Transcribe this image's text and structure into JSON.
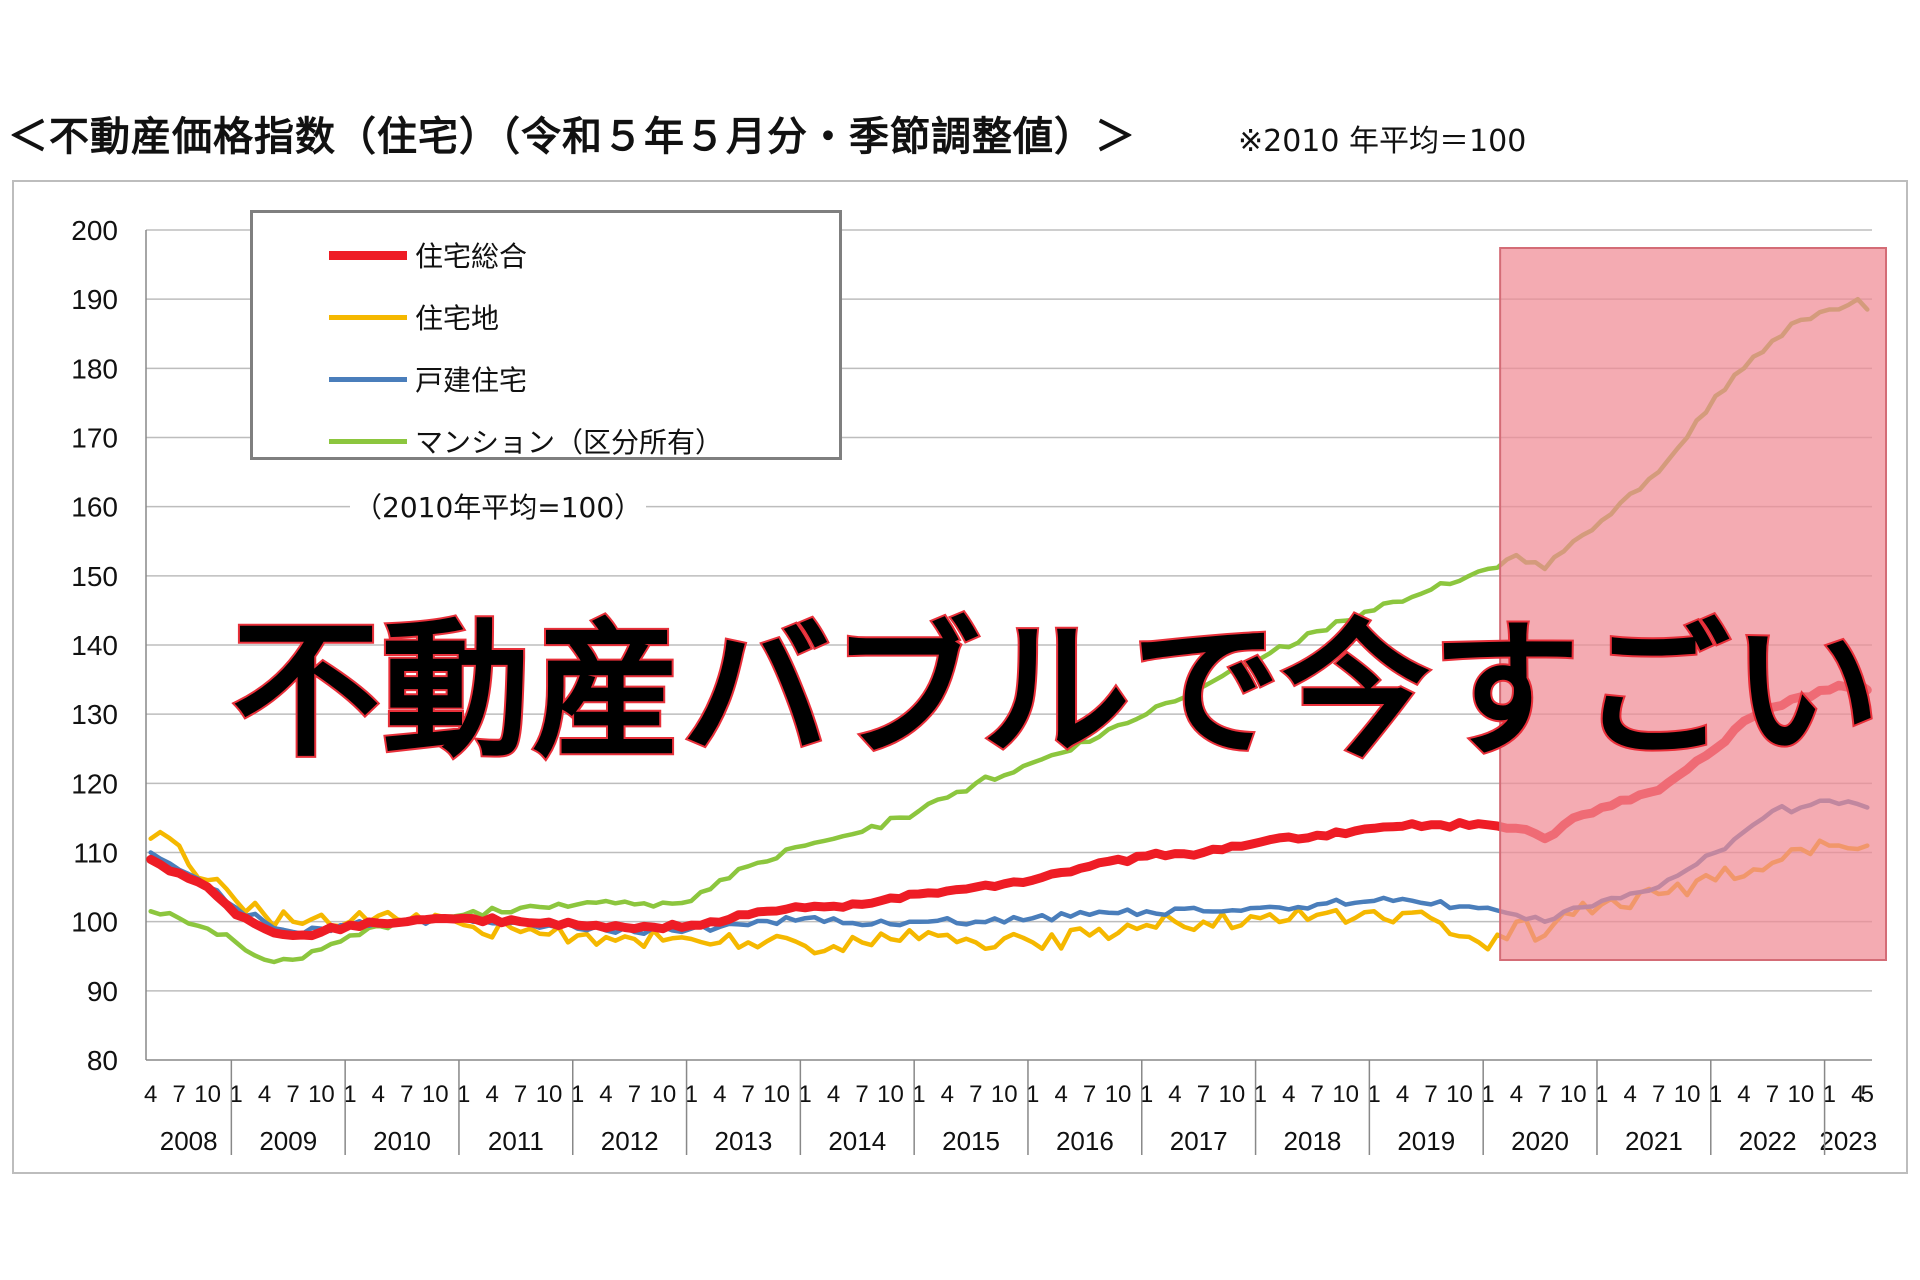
{
  "page": {
    "title": "＜不動産価格指数（住宅）（令和５年５月分・季節調整値）＞",
    "base_note": "※2010 年平均＝100",
    "overlay_caption": "不動産バブルで今すごい",
    "highlight_color": "#f08a94"
  },
  "chart_data": {
    "type": "line",
    "title": "",
    "inline_note": "（2010年平均=100）",
    "ylim": [
      80,
      200
    ],
    "y_ticks": [
      80,
      90,
      100,
      110,
      120,
      130,
      140,
      150,
      160,
      170,
      180,
      190,
      200
    ],
    "x_start": "2008-04",
    "x_end": "2023-05",
    "highlight_range": [
      "2020-03",
      "2023-05"
    ],
    "grid": true,
    "legend_position": "top-left",
    "years": [
      "2008",
      "2009",
      "2010",
      "2011",
      "2012",
      "2013",
      "2014",
      "2015",
      "2016",
      "2017",
      "2018",
      "2019",
      "2020",
      "2021",
      "2022",
      "2023"
    ],
    "month_ticks": [
      "1",
      "4",
      "7",
      "10"
    ],
    "last_year_ticks": [
      "1",
      "4",
      "5"
    ],
    "series": [
      {
        "name": "住宅総合",
        "color": "#ee1c25",
        "points": [
          [
            "2008-04",
            109
          ],
          [
            "2008-07",
            107
          ],
          [
            "2008-10",
            105
          ],
          [
            "2009-01",
            101
          ],
          [
            "2009-04",
            99
          ],
          [
            "2009-07",
            98
          ],
          [
            "2009-10",
            98.5
          ],
          [
            "2010-01",
            99.5
          ],
          [
            "2010-07",
            100
          ],
          [
            "2011-01",
            100.5
          ],
          [
            "2011-07",
            100
          ],
          [
            "2012-01",
            99.5
          ],
          [
            "2012-07",
            99
          ],
          [
            "2013-01",
            99.5
          ],
          [
            "2013-07",
            101
          ],
          [
            "2014-01",
            102
          ],
          [
            "2014-07",
            102.5
          ],
          [
            "2015-01",
            104
          ],
          [
            "2015-07",
            105
          ],
          [
            "2016-01",
            106
          ],
          [
            "2016-07",
            108
          ],
          [
            "2017-01",
            109.5
          ],
          [
            "2017-07",
            110
          ],
          [
            "2018-01",
            111.5
          ],
          [
            "2018-07",
            112.5
          ],
          [
            "2019-01",
            113.5
          ],
          [
            "2019-07",
            114
          ],
          [
            "2020-01",
            114
          ],
          [
            "2020-04",
            113.5
          ],
          [
            "2020-07",
            112
          ],
          [
            "2020-10",
            115
          ],
          [
            "2021-01",
            116.5
          ],
          [
            "2021-07",
            119
          ],
          [
            "2021-10",
            122
          ],
          [
            "2022-01",
            125
          ],
          [
            "2022-04",
            129
          ],
          [
            "2022-07",
            131
          ],
          [
            "2022-10",
            132.5
          ],
          [
            "2023-01",
            133.5
          ],
          [
            "2023-04",
            134.5
          ],
          [
            "2023-05",
            133.5
          ]
        ]
      },
      {
        "name": "住宅地",
        "color": "#f5b800",
        "points": [
          [
            "2008-04",
            112
          ],
          [
            "2008-07",
            111
          ],
          [
            "2008-10",
            106
          ],
          [
            "2009-01",
            103
          ],
          [
            "2009-04",
            101
          ],
          [
            "2009-07",
            100
          ],
          [
            "2009-10",
            101
          ],
          [
            "2010-01",
            100
          ],
          [
            "2010-07",
            100
          ],
          [
            "2011-01",
            99.5
          ],
          [
            "2011-07",
            98.5
          ],
          [
            "2012-01",
            98
          ],
          [
            "2012-07",
            97.5
          ],
          [
            "2013-01",
            97.5
          ],
          [
            "2013-07",
            97
          ],
          [
            "2014-01",
            96.5
          ],
          [
            "2014-07",
            97
          ],
          [
            "2015-01",
            97.5
          ],
          [
            "2015-07",
            97
          ],
          [
            "2016-01",
            97
          ],
          [
            "2016-07",
            98
          ],
          [
            "2017-01",
            99.5
          ],
          [
            "2017-07",
            100
          ],
          [
            "2018-01",
            100.5
          ],
          [
            "2018-07",
            101
          ],
          [
            "2019-01",
            101.5
          ],
          [
            "2019-07",
            100.5
          ],
          [
            "2020-01",
            96
          ],
          [
            "2020-04",
            100
          ],
          [
            "2020-07",
            98
          ],
          [
            "2020-10",
            101
          ],
          [
            "2021-01",
            102.5
          ],
          [
            "2021-07",
            104
          ],
          [
            "2022-01",
            106
          ],
          [
            "2022-07",
            108.5
          ],
          [
            "2022-10",
            110.5
          ],
          [
            "2023-01",
            111
          ],
          [
            "2023-04",
            110.5
          ],
          [
            "2023-05",
            111
          ]
        ]
      },
      {
        "name": "戸建住宅",
        "color": "#4a7ebb",
        "points": [
          [
            "2008-04",
            110
          ],
          [
            "2008-07",
            107.5
          ],
          [
            "2008-10",
            105
          ],
          [
            "2009-01",
            102
          ],
          [
            "2009-04",
            100
          ],
          [
            "2009-07",
            98.5
          ],
          [
            "2009-10",
            99
          ],
          [
            "2010-01",
            99.5
          ],
          [
            "2010-07",
            100
          ],
          [
            "2011-01",
            100.5
          ],
          [
            "2011-07",
            100
          ],
          [
            "2012-01",
            99
          ],
          [
            "2012-07",
            98.5
          ],
          [
            "2013-01",
            99
          ],
          [
            "2013-07",
            99.5
          ],
          [
            "2014-01",
            100.5
          ],
          [
            "2014-07",
            99.5
          ],
          [
            "2015-01",
            100
          ],
          [
            "2015-07",
            100
          ],
          [
            "2016-01",
            100.5
          ],
          [
            "2016-07",
            101
          ],
          [
            "2017-01",
            101.5
          ],
          [
            "2017-07",
            101.5
          ],
          [
            "2018-01",
            102
          ],
          [
            "2018-07",
            102.5
          ],
          [
            "2019-01",
            103
          ],
          [
            "2019-07",
            102.5
          ],
          [
            "2020-01",
            102
          ],
          [
            "2020-04",
            101
          ],
          [
            "2020-07",
            100
          ],
          [
            "2020-10",
            102
          ],
          [
            "2021-01",
            103
          ],
          [
            "2021-07",
            105
          ],
          [
            "2021-10",
            107.5
          ],
          [
            "2022-01",
            110
          ],
          [
            "2022-04",
            113
          ],
          [
            "2022-07",
            116
          ],
          [
            "2022-10",
            116.5
          ],
          [
            "2023-01",
            117.5
          ],
          [
            "2023-04",
            117
          ],
          [
            "2023-05",
            116.5
          ]
        ]
      },
      {
        "name": "マンション（区分所有）",
        "color": "#8cc63e",
        "points": [
          [
            "2008-04",
            101.5
          ],
          [
            "2008-07",
            100.5
          ],
          [
            "2008-10",
            99
          ],
          [
            "2009-01",
            97
          ],
          [
            "2009-04",
            94.5
          ],
          [
            "2009-07",
            94.5
          ],
          [
            "2009-10",
            96
          ],
          [
            "2010-01",
            98
          ],
          [
            "2010-07",
            100
          ],
          [
            "2011-01",
            101
          ],
          [
            "2011-07",
            102
          ],
          [
            "2012-01",
            102.5
          ],
          [
            "2012-07",
            102.5
          ],
          [
            "2013-01",
            103
          ],
          [
            "2013-04",
            106
          ],
          [
            "2013-07",
            108
          ],
          [
            "2014-01",
            111
          ],
          [
            "2014-07",
            113
          ],
          [
            "2015-01",
            116
          ],
          [
            "2015-07",
            120
          ],
          [
            "2016-01",
            123
          ],
          [
            "2016-07",
            126
          ],
          [
            "2017-01",
            130
          ],
          [
            "2017-07",
            134
          ],
          [
            "2018-01",
            138
          ],
          [
            "2018-07",
            142
          ],
          [
            "2019-01",
            145
          ],
          [
            "2019-07",
            148
          ],
          [
            "2020-01",
            151
          ],
          [
            "2020-04",
            153
          ],
          [
            "2020-07",
            151
          ],
          [
            "2020-10",
            155
          ],
          [
            "2021-01",
            158
          ],
          [
            "2021-07",
            165
          ],
          [
            "2021-10",
            170
          ],
          [
            "2022-01",
            176
          ],
          [
            "2022-04",
            180
          ],
          [
            "2022-07",
            184
          ],
          [
            "2022-10",
            187
          ],
          [
            "2023-01",
            188.5
          ],
          [
            "2023-04",
            190
          ],
          [
            "2023-05",
            188.5
          ]
        ]
      }
    ]
  }
}
